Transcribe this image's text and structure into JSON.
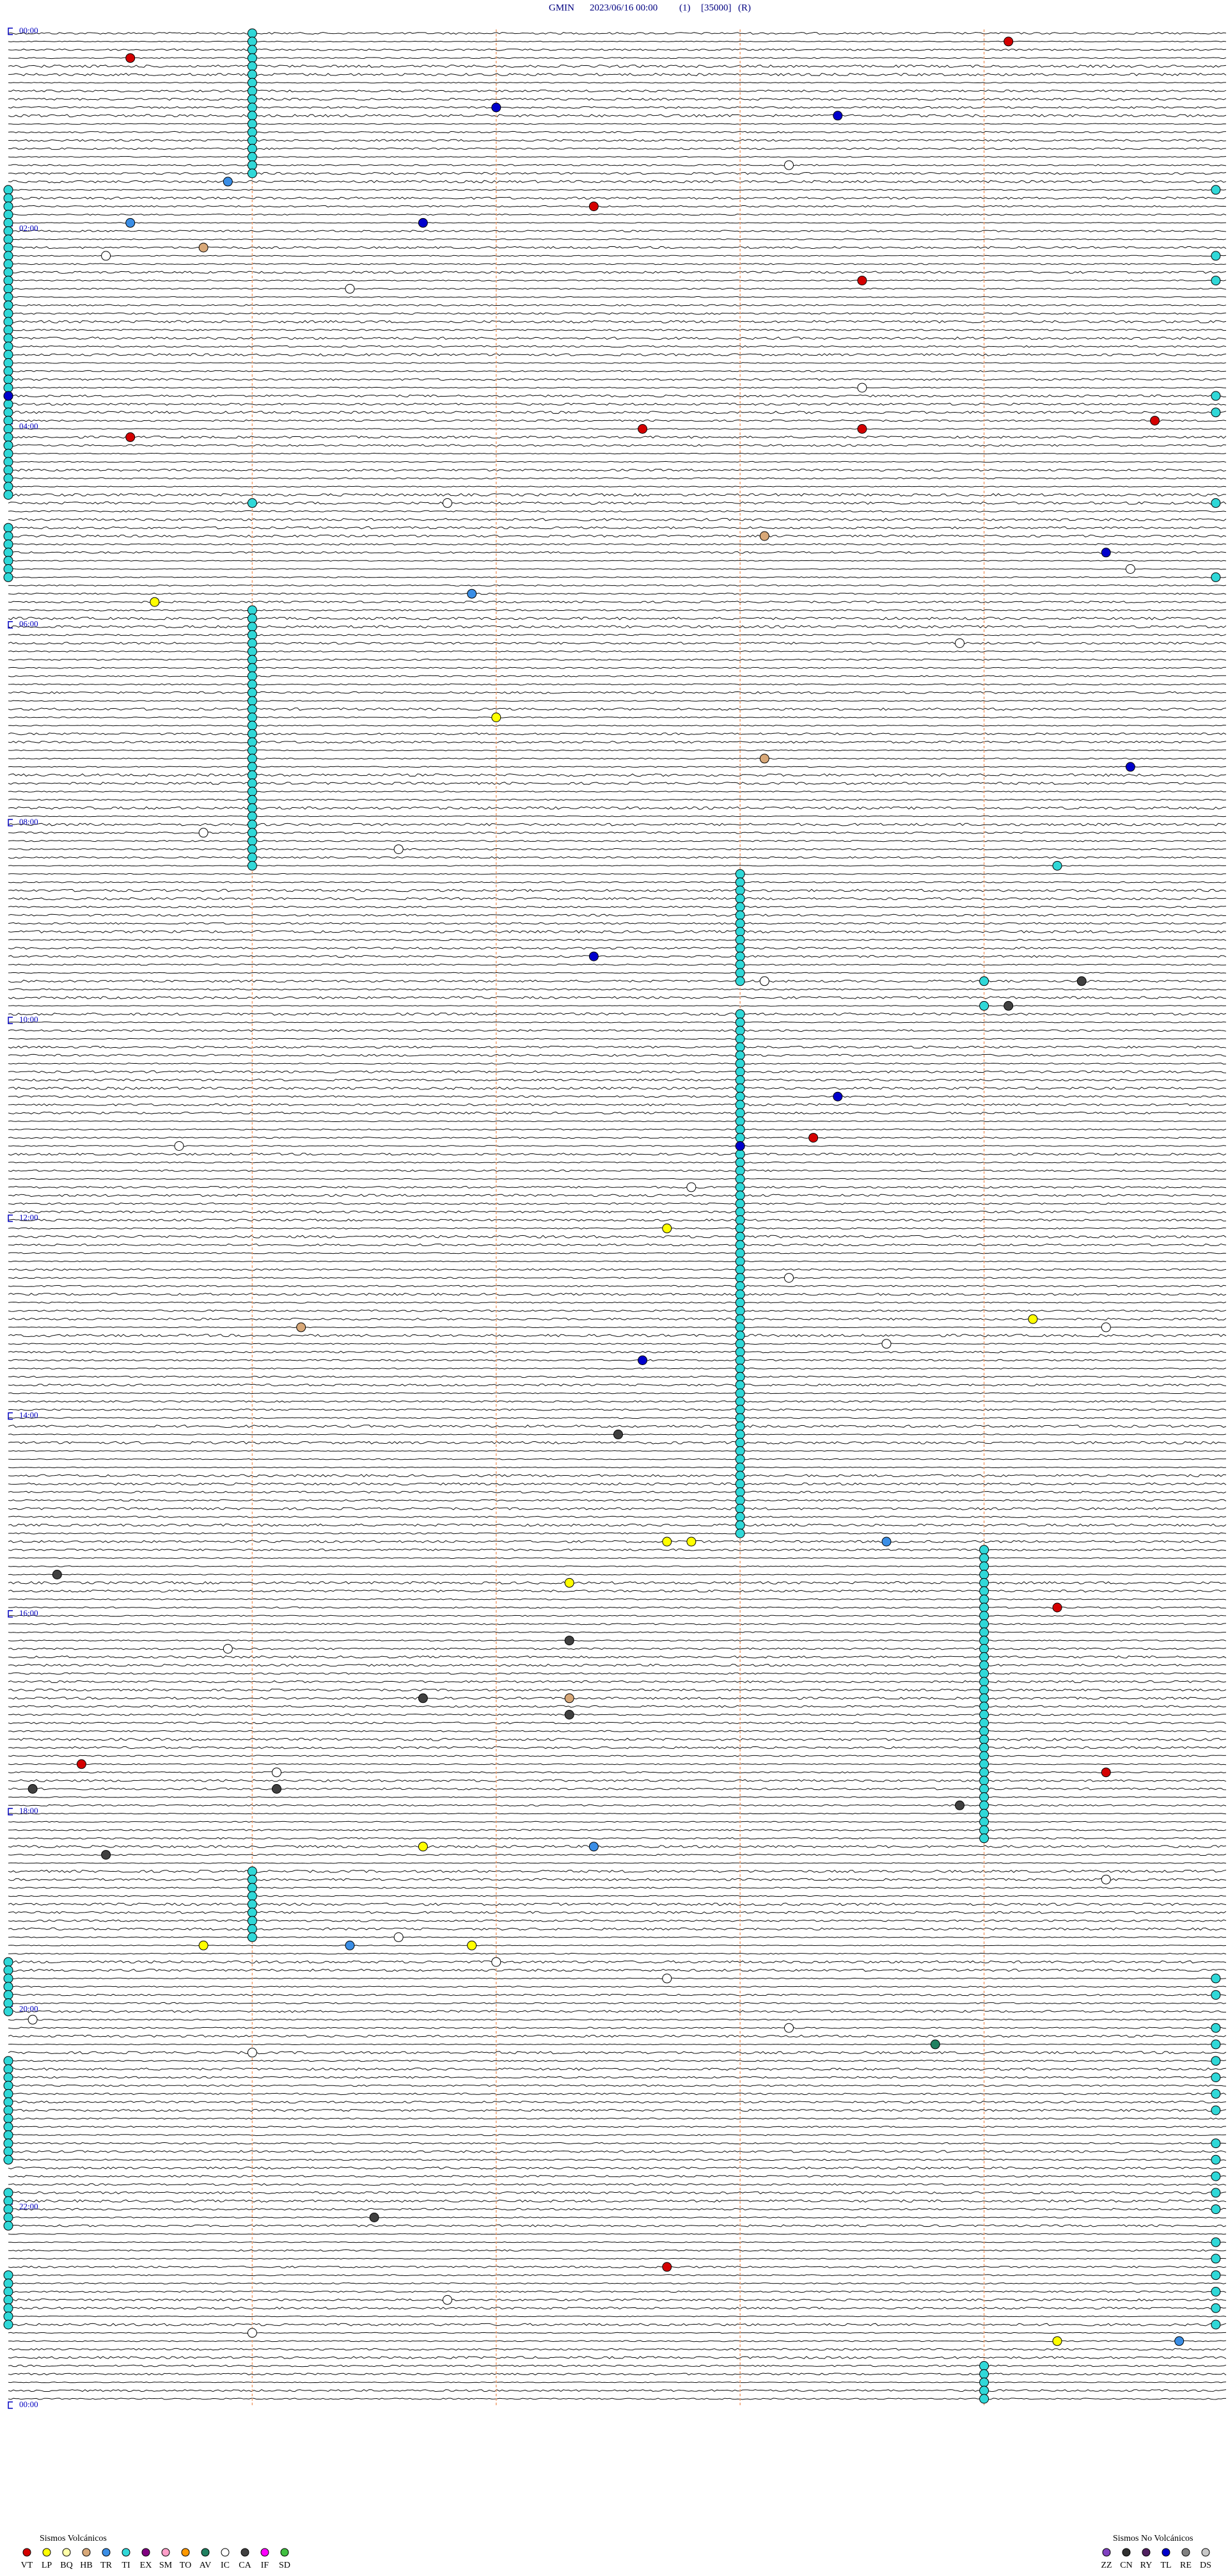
{
  "header": {
    "station": "GMIN",
    "datetime": "2023/06/16 00:00",
    "channel": "(1)",
    "scale": "[35000]",
    "mode": "(R)"
  },
  "time_labels": [
    "00:00",
    "02:00",
    "04:00",
    "06:00",
    "08:00",
    "10:00",
    "12:00",
    "14:00",
    "16:00",
    "18:00",
    "20:00",
    "22:00",
    "00:00"
  ],
  "legend": {
    "volcanic": {
      "title": "Sismos Volcánicos",
      "items": [
        {
          "code": "VT",
          "color": "#d40000"
        },
        {
          "code": "LP",
          "color": "#ffff00"
        },
        {
          "code": "BQ",
          "color": "#ffffa8"
        },
        {
          "code": "HB",
          "color": "#d8a878"
        },
        {
          "code": "TR",
          "color": "#3a8ee6"
        },
        {
          "code": "TI",
          "color": "#30d8d8"
        },
        {
          "code": "EX",
          "color": "#800080"
        },
        {
          "code": "SM",
          "color": "#ff9ec8"
        },
        {
          "code": "TO",
          "color": "#ff9900"
        },
        {
          "code": "AV",
          "color": "#208060"
        },
        {
          "code": "IC",
          "color": "#ffffff"
        },
        {
          "code": "CA",
          "color": "#404040"
        },
        {
          "code": "IF",
          "color": "#ff00ff"
        },
        {
          "code": "SD",
          "color": "#40c040"
        }
      ]
    },
    "non_volcanic": {
      "title": "Sismos No Volcánicos",
      "items": [
        {
          "code": "ZZ",
          "color": "#8040c0"
        },
        {
          "code": "CN",
          "color": "#303030"
        },
        {
          "code": "RY",
          "color": "#502060"
        },
        {
          "code": "TL",
          "color": "#0000cc"
        },
        {
          "code": "RE",
          "color": "#808080"
        },
        {
          "code": "DS",
          "color": "#c8c8c8"
        }
      ]
    }
  },
  "events": [
    {
      "code": "TI",
      "minutes": [
        1,
        6,
        11,
        16,
        21,
        26,
        31,
        36,
        41,
        46,
        51,
        56,
        61,
        66,
        71,
        76,
        81,
        86,
        286,
        351,
        356,
        361,
        366,
        371,
        376,
        381,
        386,
        391,
        396,
        401,
        406,
        411,
        416,
        421,
        426,
        431,
        436,
        441,
        446,
        451,
        456,
        461,
        466,
        471,
        476,
        481,
        486,
        491,
        496,
        501,
        506,
        509.3,
        513,
        518,
        523,
        528,
        533,
        538,
        543,
        548,
        553,
        558,
        563,
        568,
        573,
        578,
        579,
        594,
        598,
        603,
        608,
        613,
        618,
        623,
        628,
        633,
        638,
        643,
        648,
        653,
        658,
        663,
        668,
        673,
        678,
        683,
        688,
        693,
        698,
        703,
        708,
        713,
        718,
        723,
        728,
        733,
        738,
        743,
        748,
        753,
        758,
        763,
        768,
        773,
        778,
        783,
        788,
        793,
        798,
        803,
        808,
        813,
        818,
        823,
        828,
        833,
        838,
        843,
        848,
        853,
        858,
        863,
        868,
        873,
        878,
        883,
        888,
        893,
        898,
        903,
        908,
        913,
        924,
        929,
        934,
        939,
        944,
        949,
        954,
        959,
        964,
        969,
        974,
        979,
        984,
        989,
        994,
        999,
        1004,
        1009,
        1014,
        1019,
        1024,
        1029,
        1034,
        1039,
        1044,
        1049,
        1054,
        1059,
        1064,
        1069,
        1074,
        1079,
        1084,
        1089,
        1094,
        1099,
        1116,
        1121,
        1126,
        1131,
        1136,
        1141,
        1146,
        1151,
        1156,
        1419,
        1424,
        1429,
        1434,
        1439,
        95,
        100,
        105,
        110,
        115,
        120,
        125,
        130,
        135,
        140,
        145,
        150,
        155,
        160,
        165,
        170,
        175,
        180,
        185,
        190,
        195,
        200,
        205,
        210,
        215,
        220,
        225,
        230,
        235,
        240,
        245,
        250,
        255,
        260,
        265,
        270,
        275,
        280,
        300,
        305,
        310,
        315,
        320,
        325,
        330,
        1170,
        1175,
        1180,
        1185,
        1190,
        1195,
        1200,
        1230,
        1235,
        1240,
        1245,
        1250,
        1255,
        1260,
        1265,
        1270,
        1275,
        1280,
        1285,
        1290,
        1310,
        1315,
        1320,
        1325,
        1330,
        1360,
        1365,
        1370,
        1375,
        1380,
        1385,
        1390,
        99.95,
        139.95,
        154.95,
        224.95,
        234.95,
        289.95,
        334.95,
        1184.95,
        1194.95,
        1214.95,
        1224.95,
        1234.95,
        1244.95,
        1254.95,
        1264.95,
        1284.95,
        1294.95,
        1304.95,
        1314.95,
        1324.95,
        1344.95,
        1354.95,
        1364.95,
        1374.95,
        1384.95,
        1394.95
      ]
    },
    {
      "code": "VT",
      "minutes": [
        9.1,
        15.5,
        107.4,
        153.5,
        239.7,
        242.6,
        243.5,
        245.5,
        673.3,
        959.3,
        1050.3,
        1059.5,
        1357.7
      ]
    },
    {
      "code": "TL",
      "minutes": [
        47,
        53.4,
        116.7,
        220,
        319.5,
        449.6,
        562.4,
        648.4,
        678,
        807.6
      ]
    },
    {
      "code": "TR",
      "minutes": [
        90.9,
        115.5,
        341.9,
        918.6,
        1102.4,
        1161.4,
        1404.8
      ]
    },
    {
      "code": "IC",
      "minutes": [
        83.2,
        135.4,
        156.4,
        218.5,
        286.8,
        329.6,
        373.9,
        485.8,
        496.6,
        578.1,
        675.7,
        702.8,
        758.2,
        789.5,
        798.6,
        980.9,
        1056.1,
        1124.5,
        1156.6,
        1172,
        1182.7,
        1205.1,
        1213.2,
        1226,
        1376.8,
        1396
      ]
    },
    {
      "code": "HB",
      "minutes": [
        130.8,
        308.1,
        443.1,
        786.2,
        1012.3
      ]
    },
    {
      "code": "LP",
      "minutes": [
        345.6,
        417,
        727.7,
        784.2,
        917.7,
        917.8,
        942.3,
        1101.7,
        1160.8,
        1161.9,
        1404.3
      ]
    },
    {
      "code": "CA",
      "minutes": [
        579.4,
        594.1,
        852.5,
        935.2,
        977.3,
        1011.7,
        1022.3,
        1065.1,
        1066.1,
        1078.9,
        1105.4,
        1326.5
      ]
    },
    {
      "code": "AV",
      "minutes": [
        1223.8
      ]
    }
  ]
}
